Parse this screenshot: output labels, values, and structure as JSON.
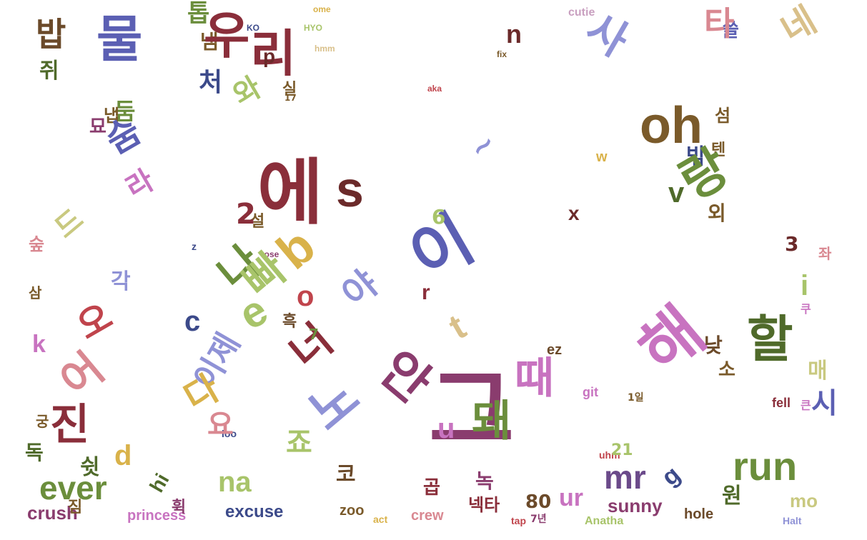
{
  "palette": {
    "olive": "#6b8e3c",
    "lavender": "#8f92d6",
    "indigo": "#5b5fb3",
    "plum": "#8a3c6e",
    "rose": "#d98891",
    "crimson": "#c0444c",
    "mustard": "#d9b24a",
    "khaki": "#c9c980",
    "sage": "#a8c46a",
    "orchid": "#c873c0",
    "brown": "#7a5a2a",
    "navy": "#3c4a8a",
    "maroon": "#8a2e3a",
    "pink": "#e07aa0",
    "tan": "#d9c08a",
    "darkolive": "#4f6a2a",
    "violet": "#b08ad9",
    "teal": "#5a7a6a"
  },
  "words": [
    {
      "t": "그",
      "s": 130,
      "r": 0,
      "c": "#8a3c6e"
    },
    {
      "t": "oh",
      "s": 72,
      "r": 0,
      "c": "#7a5a2a"
    },
    {
      "t": "s",
      "s": 70,
      "r": 0,
      "c": "#6b2a2a"
    },
    {
      "t": "이",
      "s": 90,
      "r": -30,
      "c": "#5b5fb3"
    },
    {
      "t": "에",
      "s": 100,
      "r": 0,
      "c": "#8a2e3a"
    },
    {
      "t": "해",
      "s": 90,
      "r": -40,
      "c": "#c873c0"
    },
    {
      "t": "할",
      "s": 70,
      "r": 0,
      "c": "#4f6a2a"
    },
    {
      "t": "run",
      "s": 56,
      "r": 0,
      "c": "#6b8e3c"
    },
    {
      "t": "mr",
      "s": 46,
      "r": 0,
      "c": "#6b4a8a"
    },
    {
      "t": "ever",
      "s": 46,
      "r": 0,
      "c": "#6b8e3c"
    },
    {
      "t": "na",
      "s": 40,
      "r": 0,
      "c": "#a8c46a"
    },
    {
      "t": "ur",
      "s": 34,
      "r": 0,
      "c": "#c873c0"
    },
    {
      "t": "sunny",
      "s": 26,
      "r": 0,
      "c": "#8a3c6e"
    },
    {
      "t": "crush",
      "s": 26,
      "r": 0,
      "c": "#8a3c6e"
    },
    {
      "t": "princess",
      "s": 20,
      "r": 0,
      "c": "#c873c0"
    },
    {
      "t": "excuse",
      "s": 24,
      "r": 0,
      "c": "#3c4a8a"
    },
    {
      "t": "zoo",
      "s": 20,
      "r": 0,
      "c": "#7a5a2a"
    },
    {
      "t": "crew",
      "s": 20,
      "r": 0,
      "c": "#d98891"
    },
    {
      "t": "hole",
      "s": 20,
      "r": 0,
      "c": "#6b4a2a"
    },
    {
      "t": "Anatha",
      "s": 16,
      "r": 0,
      "c": "#a8c46a"
    },
    {
      "t": "Halt",
      "s": 14,
      "r": 0,
      "c": "#8f92d6"
    },
    {
      "t": "fell",
      "s": 18,
      "r": 0,
      "c": "#8a2e3a"
    },
    {
      "t": "mo",
      "s": 26,
      "r": 0,
      "c": "#c9c980"
    },
    {
      "t": "uhm",
      "s": 14,
      "r": 0,
      "c": "#c0444c"
    },
    {
      "t": "git",
      "s": 18,
      "r": 0,
      "c": "#c873c0"
    },
    {
      "t": "ez",
      "s": 20,
      "r": 0,
      "c": "#6b4a2a"
    },
    {
      "t": "80",
      "s": 26,
      "r": 0,
      "c": "#6b4a2a"
    },
    {
      "t": "21",
      "s": 22,
      "r": 0,
      "c": "#a8c46a"
    },
    {
      "t": "cutie",
      "s": 16,
      "r": 0,
      "c": "#c9a0c0"
    },
    {
      "t": "KO",
      "s": 12,
      "r": 0,
      "c": "#3c4a8a"
    },
    {
      "t": "HYO",
      "s": 12,
      "r": 0,
      "c": "#a8c46a"
    },
    {
      "t": "hmm",
      "s": 12,
      "r": 0,
      "c": "#d9c08a"
    },
    {
      "t": "ome",
      "s": 12,
      "r": 0,
      "c": "#d9b24a"
    },
    {
      "t": "fix",
      "s": 12,
      "r": 0,
      "c": "#7a5a2a"
    },
    {
      "t": "aka",
      "s": 12,
      "r": 0,
      "c": "#c0444c"
    },
    {
      "t": "act",
      "s": 14,
      "r": 0,
      "c": "#d9b24a"
    },
    {
      "t": "tap",
      "s": 14,
      "r": 0,
      "c": "#c0444c"
    },
    {
      "t": "7년",
      "s": 14,
      "r": 0,
      "c": "#8a3c6e"
    },
    {
      "t": "loo",
      "s": 14,
      "r": 0,
      "c": "#3c4a8a"
    },
    {
      "t": "rose",
      "s": 12,
      "r": 0,
      "c": "#8a3c6e"
    },
    {
      "t": "넥타",
      "s": 24,
      "r": 0,
      "c": "#8a2e3a"
    },
    {
      "t": "곱",
      "s": 26,
      "r": 0,
      "c": "#8a2e3a"
    },
    {
      "t": "녹",
      "s": 28,
      "r": 0,
      "c": "#8a3c6e"
    },
    {
      "t": "쉿",
      "s": 30,
      "r": 0,
      "c": "#4f6a2a"
    },
    {
      "t": "짐",
      "s": 22,
      "r": 0,
      "c": "#7a5a2a"
    },
    {
      "t": "휙",
      "s": 22,
      "r": 0,
      "c": "#8a3c6e"
    },
    {
      "t": "독",
      "s": 28,
      "r": 0,
      "c": "#4f6a2a"
    },
    {
      "t": "궁",
      "s": 20,
      "r": 0,
      "c": "#7a5a2a"
    },
    {
      "t": "밥",
      "s": 46,
      "r": 0,
      "c": "#6b4a2a"
    },
    {
      "t": "쥐",
      "s": 30,
      "r": 0,
      "c": "#4f6a2a"
    },
    {
      "t": "톱",
      "s": 34,
      "r": 0,
      "c": "#6b8e3c"
    },
    {
      "t": "둠",
      "s": 32,
      "r": 0,
      "c": "#6b8e3c"
    },
    {
      "t": "처",
      "s": 36,
      "r": 0,
      "c": "#3c4a8a"
    },
    {
      "t": "묘",
      "s": 26,
      "r": 0,
      "c": "#8a3c6e"
    },
    {
      "t": "냄",
      "s": 28,
      "r": 0,
      "c": "#7a5a2a"
    },
    {
      "t": "밖",
      "s": 30,
      "r": 0,
      "c": "#3c4a8a"
    },
    {
      "t": "쓸",
      "s": 26,
      "r": 0,
      "c": "#5b5fb3"
    },
    {
      "t": "섬",
      "s": 24,
      "r": 0,
      "c": "#7a5a2a"
    },
    {
      "t": "텐",
      "s": 22,
      "r": 0,
      "c": "#7a5a2a"
    },
    {
      "t": "외",
      "s": 28,
      "r": 0,
      "c": "#7a5a2a"
    },
    {
      "t": "좌",
      "s": 20,
      "r": 0,
      "c": "#d98891"
    },
    {
      "t": "낮",
      "s": 28,
      "r": 0,
      "c": "#6b4a2a"
    },
    {
      "t": "매",
      "s": 30,
      "r": 0,
      "c": "#c9c980"
    },
    {
      "t": "시",
      "s": 40,
      "r": 0,
      "c": "#5b5fb3"
    },
    {
      "t": "원",
      "s": 30,
      "r": 0,
      "c": "#4f6a2a"
    },
    {
      "t": "소",
      "s": 26,
      "r": 0,
      "c": "#7a5a2a"
    },
    {
      "t": "흑",
      "s": 22,
      "r": 0,
      "c": "#6b4a2a"
    },
    {
      "t": "설",
      "s": 22,
      "r": 0,
      "c": "#7a5a2a"
    },
    {
      "t": "각",
      "s": 30,
      "r": 0,
      "c": "#8f92d6"
    },
    {
      "t": "삼",
      "s": 20,
      "r": 0,
      "c": "#7a5a2a"
    },
    {
      "t": "실",
      "s": 22,
      "r": 0,
      "c": "#7a5a2a"
    },
    {
      "t": "냅",
      "s": 24,
      "r": 0,
      "c": "#7a5a2a"
    },
    {
      "t": "숲",
      "s": 24,
      "r": 0,
      "c": "#d98891"
    },
    {
      "t": "쿠",
      "s": 16,
      "r": 0,
      "c": "#c873c0"
    },
    {
      "t": "큰",
      "s": 16,
      "r": 0,
      "c": "#c873c0"
    },
    {
      "t": "1일",
      "s": 14,
      "r": 0,
      "c": "#7a5a2a"
    },
    {
      "t": "진",
      "s": 60,
      "r": 0,
      "c": "#8a2e3a"
    },
    {
      "t": "물",
      "s": 70,
      "r": 0,
      "c": "#5b5fb3"
    },
    {
      "t": "우",
      "s": 70,
      "r": 0,
      "c": "#8a2e3a"
    },
    {
      "t": "리",
      "s": 70,
      "r": 0,
      "c": "#8a2e3a"
    },
    {
      "t": "사",
      "s": 60,
      "r": 30,
      "c": "#8f92d6"
    },
    {
      "t": "랑",
      "s": 70,
      "r": -30,
      "c": "#6b8e3c"
    },
    {
      "t": "네",
      "s": 50,
      "r": -30,
      "c": "#d9c08a"
    },
    {
      "t": "타",
      "s": 46,
      "r": 0,
      "c": "#d98891"
    },
    {
      "t": "돼",
      "s": 60,
      "r": 0,
      "c": "#6b8e3c"
    },
    {
      "t": "때",
      "s": 60,
      "r": 0,
      "c": "#c873c0"
    },
    {
      "t": "드",
      "s": 40,
      "r": -40,
      "c": "#c9c980"
    },
    {
      "t": "노",
      "s": 70,
      "r": -40,
      "c": "#8f92d6"
    },
    {
      "t": "어",
      "s": 60,
      "r": -40,
      "c": "#d98891"
    },
    {
      "t": "너",
      "s": 60,
      "r": -40,
      "c": "#8a2e3a"
    },
    {
      "t": "나",
      "s": 60,
      "r": -40,
      "c": "#6b8e3c"
    },
    {
      "t": "안",
      "s": 70,
      "r": 40,
      "c": "#8a3c6e"
    },
    {
      "t": "빠",
      "s": 60,
      "r": -40,
      "c": "#a8c46a"
    },
    {
      "t": "야",
      "s": 50,
      "r": -40,
      "c": "#8f92d6"
    },
    {
      "t": "오",
      "s": 50,
      "r": -30,
      "c": "#c0444c"
    },
    {
      "t": "라",
      "s": 40,
      "r": -30,
      "c": "#c873c0"
    },
    {
      "t": "이제",
      "s": 44,
      "r": -60,
      "c": "#8f92d6"
    },
    {
      "t": "숨",
      "s": 50,
      "r": -30,
      "c": "#5b5fb3"
    },
    {
      "t": "와",
      "s": 40,
      "r": -30,
      "c": "#a8c46a"
    },
    {
      "t": "다",
      "s": 50,
      "r": -30,
      "c": "#d9b24a"
    },
    {
      "t": "요",
      "s": 40,
      "r": 0,
      "c": "#d98891"
    },
    {
      "t": "죠",
      "s": 40,
      "r": 0,
      "c": "#a8c46a"
    },
    {
      "t": "코",
      "s": 30,
      "r": 0,
      "c": "#6b4a2a"
    },
    {
      "t": "~",
      "s": 40,
      "r": -40,
      "c": "#8f92d6"
    },
    {
      "t": "e",
      "s": 60,
      "r": -30,
      "c": "#a8c46a"
    },
    {
      "t": "b",
      "s": 70,
      "r": -40,
      "c": "#d9b24a"
    },
    {
      "t": "u",
      "s": 40,
      "r": 0,
      "c": "#c873c0"
    },
    {
      "t": "d",
      "s": 40,
      "r": 0,
      "c": "#d9b24a"
    },
    {
      "t": "k",
      "s": 34,
      "r": 0,
      "c": "#c873c0"
    },
    {
      "t": "c",
      "s": 40,
      "r": 0,
      "c": "#3c4a8a"
    },
    {
      "t": "n",
      "s": 36,
      "r": 0,
      "c": "#6b2a2a"
    },
    {
      "t": "p",
      "s": 28,
      "r": 0,
      "c": "#6b2a2a"
    },
    {
      "t": "x",
      "s": 28,
      "r": 0,
      "c": "#6b2a2a"
    },
    {
      "t": "v",
      "s": 40,
      "r": 0,
      "c": "#4f6a2a"
    },
    {
      "t": "w",
      "s": 20,
      "r": 0,
      "c": "#d9b24a"
    },
    {
      "t": "3",
      "s": 28,
      "r": 0,
      "c": "#6b2a2a"
    },
    {
      "t": "7",
      "s": 20,
      "r": 0,
      "c": "#6b8e3c"
    },
    {
      "t": "17",
      "s": 12,
      "r": 0,
      "c": "#7a5a2a"
    },
    {
      "t": "hi",
      "s": 28,
      "r": -60,
      "c": "#4f6a2a"
    },
    {
      "t": "g",
      "s": 34,
      "r": -40,
      "c": "#3c4a8a"
    },
    {
      "t": "r",
      "s": 30,
      "r": 0,
      "c": "#8a2e3a"
    },
    {
      "t": "t",
      "s": 50,
      "r": -30,
      "c": "#d9c08a"
    },
    {
      "t": "i",
      "s": 40,
      "r": 0,
      "c": "#a8c46a"
    },
    {
      "t": "o",
      "s": 40,
      "r": 0,
      "c": "#c0444c"
    },
    {
      "t": "2",
      "s": 40,
      "r": 0,
      "c": "#8a2e3a"
    },
    {
      "t": "6",
      "s": 28,
      "r": 0,
      "c": "#a8c46a"
    },
    {
      "t": "z",
      "s": 14,
      "r": 0,
      "c": "#3c4a8a"
    }
  ]
}
